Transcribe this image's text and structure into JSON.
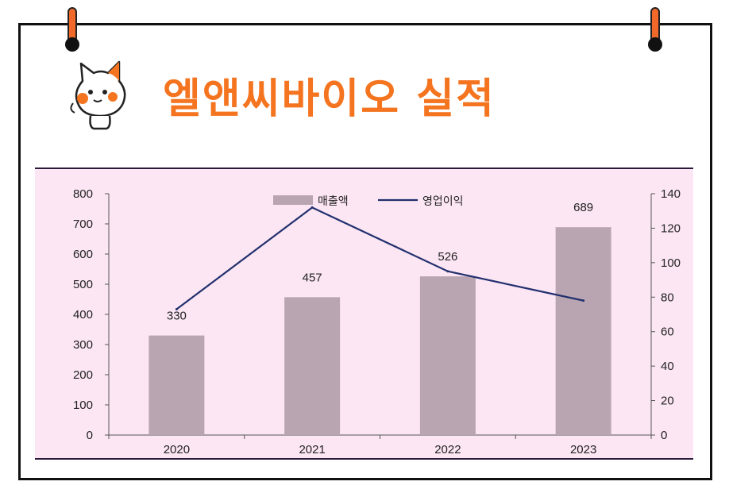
{
  "page": {
    "title": "엘앤씨바이오 실적"
  },
  "colors": {
    "title": "#f4741f",
    "panel_bg": "#fce6f4",
    "bar": "#b9a5b2",
    "line": "#22306e",
    "pin": "#f0692a",
    "mascot_spot": "#f4741f"
  },
  "icons": {
    "mascot": "cat-mascot-icon",
    "pin_left": "pushpin-icon",
    "pin_right": "pushpin-icon"
  },
  "chart_data": {
    "type": "bar",
    "categories": [
      "2020",
      "2021",
      "2022",
      "2023"
    ],
    "series": [
      {
        "name": "매출액",
        "type": "bar",
        "axis": "left",
        "values": [
          330,
          457,
          526,
          689
        ],
        "data_labels": [
          "330",
          "457",
          "526",
          "689"
        ]
      },
      {
        "name": "영업이익",
        "type": "line",
        "axis": "right",
        "values": [
          73,
          132,
          95,
          78
        ]
      }
    ],
    "y_left": {
      "min": 0,
      "max": 800,
      "ticks": [
        "0",
        "100",
        "200",
        "300",
        "400",
        "500",
        "600",
        "700",
        "800"
      ]
    },
    "y_right": {
      "min": 0,
      "max": 140,
      "ticks": [
        "0",
        "20",
        "40",
        "60",
        "80",
        "100",
        "120",
        "140"
      ]
    },
    "grid": false,
    "legend": "top-center"
  }
}
